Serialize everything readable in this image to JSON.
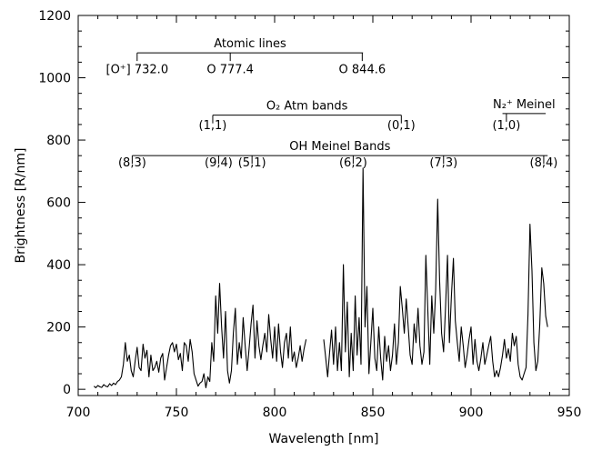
{
  "chart_data": {
    "type": "line",
    "xlabel": "Wavelength [nm]",
    "ylabel": "Brightness [R/nm]",
    "xlim": [
      700,
      950
    ],
    "ylim": [
      -20,
      1200
    ],
    "xticks": [
      700,
      750,
      800,
      850,
      900,
      950
    ],
    "yticks": [
      0,
      200,
      400,
      600,
      800,
      1000,
      1200
    ],
    "grid": false,
    "series": [
      {
        "segments": [
          {
            "x": [
              708,
              709,
              710,
              711,
              712,
              713,
              714,
              715,
              716,
              717,
              718,
              719,
              720,
              721,
              722,
              723,
              724,
              725,
              726,
              727,
              728,
              729,
              730,
              731,
              732,
              733,
              734,
              735,
              736,
              737,
              738,
              739,
              740,
              741,
              742,
              743,
              744,
              745,
              746,
              747,
              748,
              749,
              750,
              751,
              752,
              753,
              754,
              755,
              756,
              757,
              758,
              759,
              760,
              761,
              762,
              763,
              764,
              765,
              766,
              767,
              768,
              769,
              770,
              771,
              772,
              773,
              774,
              775,
              776,
              777,
              778,
              779,
              780,
              781,
              782,
              783,
              784,
              785,
              786,
              787,
              788,
              789,
              790,
              791,
              792,
              793,
              794,
              795,
              796,
              797,
              798,
              799,
              800,
              801,
              802,
              803,
              804,
              805,
              806,
              807,
              808,
              809,
              810,
              811,
              812,
              813,
              814,
              815,
              816
            ],
            "y": [
              10,
              5,
              12,
              8,
              6,
              15,
              10,
              8,
              18,
              12,
              20,
              15,
              25,
              30,
              40,
              80,
              150,
              90,
              110,
              60,
              40,
              90,
              135,
              70,
              60,
              145,
              100,
              125,
              40,
              110,
              60,
              70,
              90,
              55,
              100,
              115,
              30,
              70,
              110,
              140,
              150,
              120,
              145,
              95,
              115,
              60,
              150,
              140,
              90,
              160,
              120,
              50,
              30,
              10,
              20,
              25,
              50,
              5,
              40,
              25,
              150,
              90,
              300,
              180,
              340,
              200,
              100,
              250,
              60,
              20,
              60,
              180,
              260,
              80,
              150,
              100,
              230,
              140,
              60,
              130,
              210,
              270,
              100,
              220,
              140,
              95,
              140,
              180,
              120,
              240,
              160,
              100,
              200,
              90,
              210,
              120,
              70,
              150,
              180,
              100,
              200,
              90,
              120,
              70,
              100,
              140,
              90,
              130,
              160
            ]
          },
          {
            "x": [
              825,
              826,
              827,
              828,
              829,
              830,
              831,
              832,
              833,
              834,
              835,
              836,
              837,
              838,
              839,
              840,
              841,
              842,
              843,
              844,
              845,
              846,
              847,
              848,
              849,
              850,
              851,
              852,
              853,
              854,
              855,
              856,
              857,
              858,
              859,
              860,
              861,
              862,
              863,
              864,
              865,
              866,
              867,
              868,
              869,
              870,
              871,
              872,
              873,
              874,
              875,
              876,
              877,
              878,
              879,
              880,
              881,
              882,
              883,
              884,
              885,
              886,
              887,
              888,
              889,
              890,
              891,
              892,
              893,
              894,
              895,
              896,
              897,
              898,
              899,
              900,
              901,
              902,
              903,
              904,
              905,
              906,
              907,
              908,
              909,
              910,
              911,
              912,
              913,
              914,
              915,
              916,
              917,
              918,
              919,
              920,
              921,
              922,
              923,
              924,
              925,
              926,
              927,
              928,
              929,
              930,
              931,
              932,
              933,
              934,
              935,
              936,
              937,
              938,
              939
            ],
            "y": [
              160,
              100,
              40,
              120,
              190,
              80,
              200,
              60,
              150,
              60,
              400,
              120,
              280,
              40,
              180,
              60,
              300,
              110,
              230,
              80,
              710,
              200,
              330,
              50,
              150,
              260,
              100,
              60,
              200,
              100,
              30,
              170,
              90,
              140,
              60,
              110,
              210,
              80,
              150,
              330,
              260,
              180,
              290,
              200,
              110,
              80,
              210,
              150,
              260,
              140,
              80,
              120,
              430,
              250,
              80,
              300,
              180,
              320,
              610,
              350,
              180,
              120,
              260,
              430,
              150,
              300,
              420,
              220,
              150,
              90,
              200,
              140,
              70,
              110,
              160,
              200,
              80,
              160,
              90,
              60,
              100,
              150,
              80,
              110,
              140,
              170,
              90,
              40,
              60,
              40,
              70,
              110,
              160,
              100,
              130,
              90,
              180,
              140,
              170,
              80,
              40,
              30,
              50,
              70,
              240,
              530,
              380,
              150,
              60,
              90,
              210,
              390,
              340,
              235,
              200
            ]
          }
        ]
      }
    ],
    "annotations": [
      {
        "title": "Atomic lines",
        "x_start": 730,
        "x_end": 845,
        "y": 1080,
        "marks": [
          {
            "x": 730,
            "label": "[O⁺] 732.0",
            "label_y": 1015
          },
          {
            "x": 777.4,
            "label": "O 777.4",
            "label_y": 1015
          },
          {
            "x": 844.6,
            "label": "O 844.6",
            "label_y": 1015
          }
        ]
      },
      {
        "title": "O₂ Atm bands",
        "x_start": 768.5,
        "x_end": 864.5,
        "y": 880,
        "marks": [
          {
            "x": 768.5,
            "label": "(1,1)",
            "label_y": 835
          },
          {
            "x": 864.5,
            "label": "(0,1)",
            "label_y": 835
          }
        ]
      },
      {
        "title": "N₂⁺ Meinel",
        "x_start": 916,
        "x_end": 938,
        "y": 885,
        "marks": [
          {
            "x": 918,
            "label": "(1,0)",
            "label_y": 835
          }
        ]
      },
      {
        "title": "OH Meinel Bands",
        "x_start": 727.5,
        "x_end": 939,
        "y": 750,
        "marks": [
          {
            "x": 727.5,
            "label": "(8,3)",
            "label_y": 715
          },
          {
            "x": 771.5,
            "label": "(9,4)",
            "label_y": 715
          },
          {
            "x": 788.5,
            "label": "(5,1)",
            "label_y": 715
          },
          {
            "x": 840,
            "label": "(6,2)",
            "label_y": 715
          },
          {
            "x": 886,
            "label": "(7,3)",
            "label_y": 715
          },
          {
            "x": 937,
            "label": "(8,4)",
            "label_y": 715
          }
        ]
      }
    ]
  }
}
